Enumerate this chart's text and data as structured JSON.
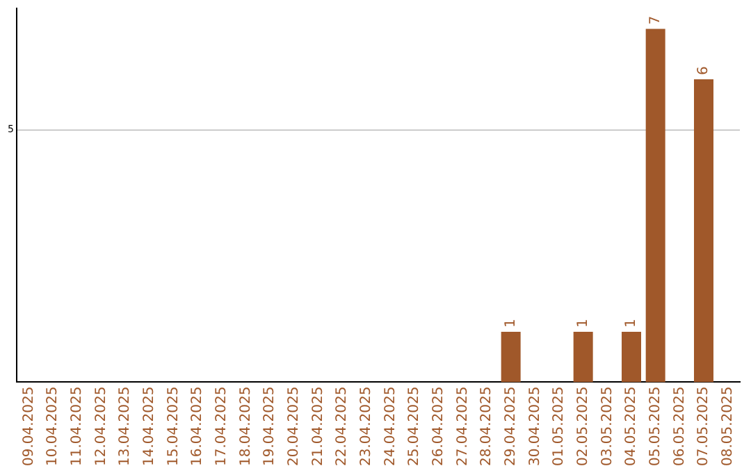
{
  "chart_data": {
    "type": "bar",
    "categories": [
      "09.04.2025",
      "10.04.2025",
      "11.04.2025",
      "12.04.2025",
      "13.04.2025",
      "14.04.2025",
      "15.04.2025",
      "16.04.2025",
      "17.04.2025",
      "18.04.2025",
      "19.04.2025",
      "20.04.2025",
      "21.04.2025",
      "22.04.2025",
      "23.04.2025",
      "24.04.2025",
      "25.04.2025",
      "26.04.2025",
      "27.04.2025",
      "28.04.2025",
      "29.04.2025",
      "30.04.2025",
      "01.05.2025",
      "02.05.2025",
      "03.05.2025",
      "04.05.2025",
      "05.05.2025",
      "06.05.2025",
      "07.05.2025",
      "08.05.2025"
    ],
    "values": [
      null,
      null,
      null,
      null,
      null,
      null,
      null,
      null,
      null,
      null,
      null,
      null,
      null,
      null,
      null,
      null,
      null,
      null,
      null,
      null,
      1,
      null,
      null,
      1,
      null,
      1,
      7,
      null,
      6,
      null
    ],
    "color": "#a0582a",
    "ylim": [
      0,
      7.4
    ],
    "yticks": [
      5
    ],
    "grid": "y",
    "data_labels": true,
    "legend": false
  }
}
